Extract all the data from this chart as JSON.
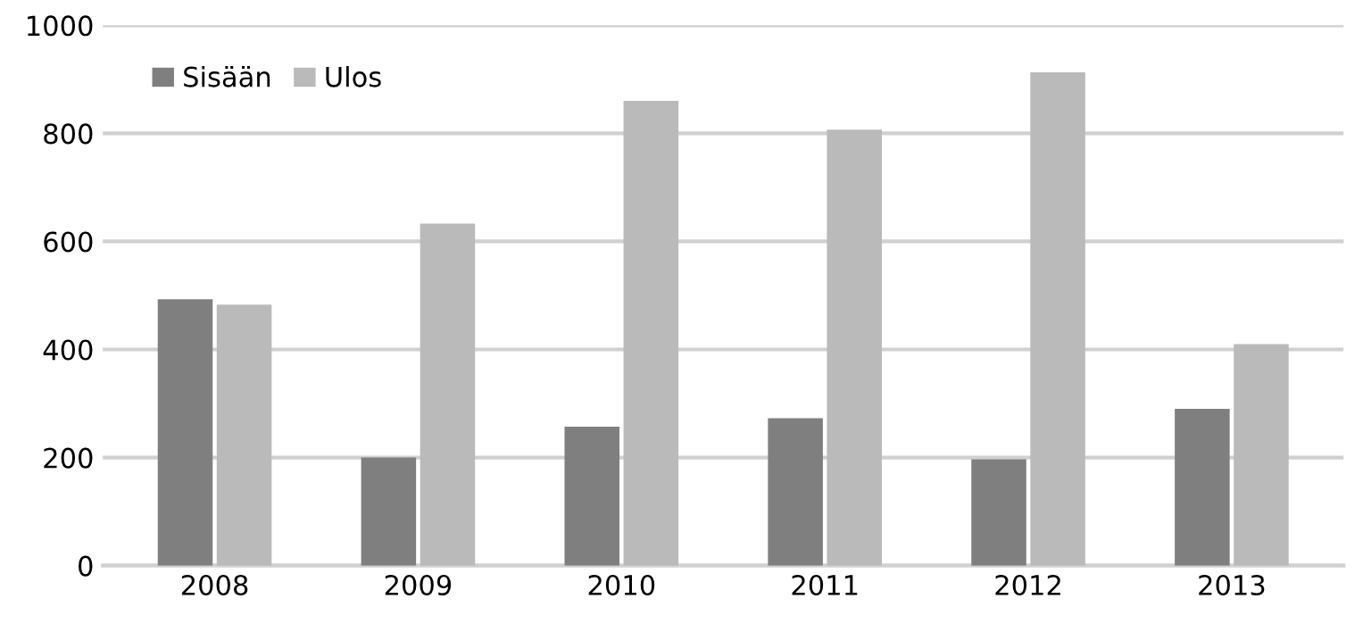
{
  "chart_data": {
    "type": "bar",
    "categories": [
      "2008",
      "2009",
      "2010",
      "2011",
      "2012",
      "2013"
    ],
    "series": [
      {
        "name": "Sisään",
        "color": "#7f7f7f",
        "values": [
          493,
          200,
          257,
          273,
          197,
          290
        ]
      },
      {
        "name": "Ulos",
        "color": "#bababa",
        "values": [
          483,
          633,
          860,
          807,
          913,
          410
        ]
      }
    ],
    "ylim": [
      0,
      1000
    ],
    "yticks": [
      0,
      200,
      400,
      600,
      800,
      1000
    ],
    "grid": "y",
    "legend": "top left"
  }
}
